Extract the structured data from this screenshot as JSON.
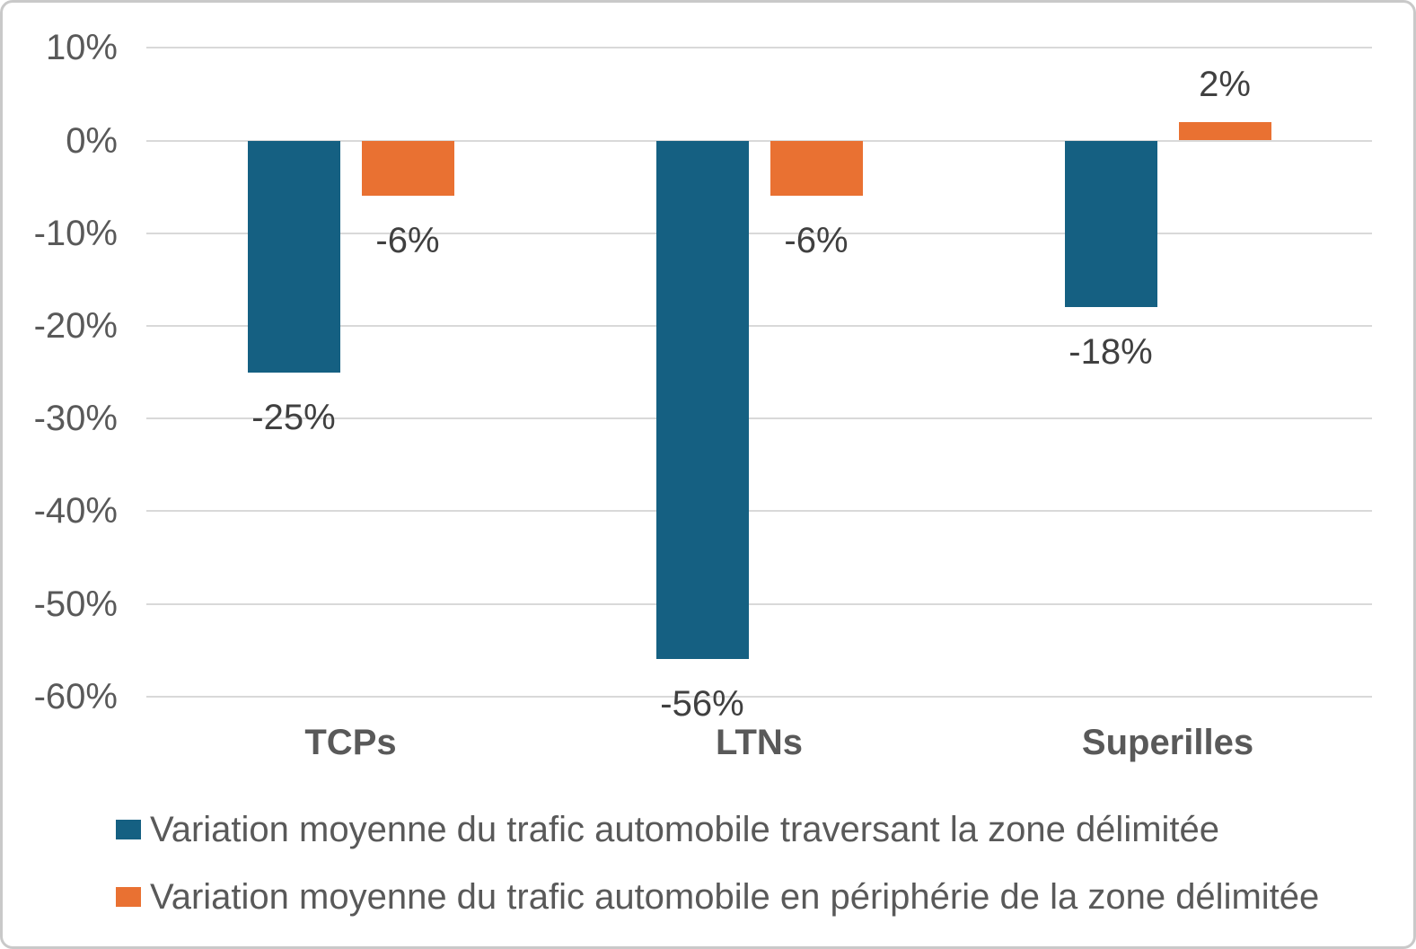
{
  "chart_data": {
    "type": "bar",
    "title": "",
    "xlabel": "",
    "ylabel": "",
    "categories": [
      "TCPs",
      "LTNs",
      "Superilles"
    ],
    "series": [
      {
        "name": "Variation moyenne du trafic automobile traversant la zone délimitée",
        "color": "#156082",
        "values": [
          -25,
          -56,
          -18
        ],
        "data_labels": [
          "-25%",
          "-56%",
          "-18%"
        ]
      },
      {
        "name": "Variation moyenne du trafic automobile en périphérie de la zone délimitée",
        "color": "#E97132",
        "values": [
          -6,
          -6,
          2
        ],
        "data_labels": [
          "-6%",
          "-6%",
          "2%"
        ]
      }
    ],
    "y_axis": {
      "min": -60,
      "max": 10,
      "step": 10,
      "ticks": [
        {
          "value": 10,
          "label": "10%"
        },
        {
          "value": 0,
          "label": "0%"
        },
        {
          "value": -10,
          "label": "-10%"
        },
        {
          "value": -20,
          "label": "-20%"
        },
        {
          "value": -30,
          "label": "-30%"
        },
        {
          "value": -40,
          "label": "-40%"
        },
        {
          "value": -50,
          "label": "-50%"
        },
        {
          "value": -60,
          "label": "-60%"
        }
      ]
    },
    "grid": true,
    "legend_position": "bottom-left"
  }
}
